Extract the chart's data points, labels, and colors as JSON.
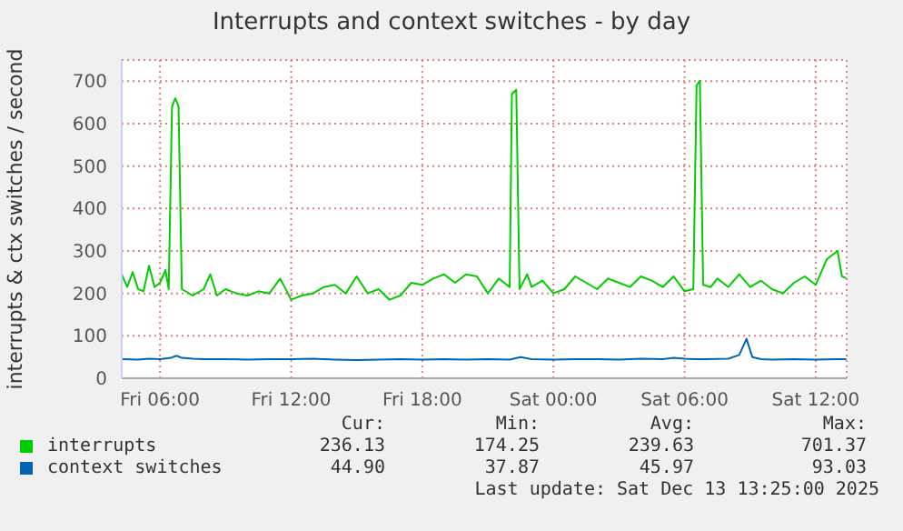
{
  "chart_data": {
    "type": "line",
    "title": "Interrupts and context switches - by day",
    "ylabel": "interrupts & ctx switches / second",
    "xlim": [
      "2025-12-12T04:15",
      "2025-12-13T13:25"
    ],
    "xticks": [
      {
        "value": "2025-12-12T06:00",
        "label": "Fri 06:00"
      },
      {
        "value": "2025-12-12T12:00",
        "label": "Fri 12:00"
      },
      {
        "value": "2025-12-12T18:00",
        "label": "Fri 18:00"
      },
      {
        "value": "2025-12-13T00:00",
        "label": "Sat 00:00"
      },
      {
        "value": "2025-12-13T06:00",
        "label": "Sat 06:00"
      },
      {
        "value": "2025-12-13T12:00",
        "label": "Sat 12:00"
      }
    ],
    "ylim": [
      0,
      750
    ],
    "yticks": [
      0,
      100,
      200,
      300,
      400,
      500,
      600,
      700
    ],
    "grid": true,
    "legend": "bottom",
    "marker": "none",
    "series": [
      {
        "name": "interrupts",
        "color": "#00cc00",
        "x": [
          "2025-12-12T04:15",
          "2025-12-12T04:30",
          "2025-12-12T04:45",
          "2025-12-12T05:00",
          "2025-12-12T05:15",
          "2025-12-12T05:30",
          "2025-12-12T05:45",
          "2025-12-12T06:00",
          "2025-12-12T06:15",
          "2025-12-12T06:24",
          "2025-12-12T06:33",
          "2025-12-12T06:42",
          "2025-12-12T06:51",
          "2025-12-12T07:00",
          "2025-12-12T07:30",
          "2025-12-12T08:00",
          "2025-12-12T08:18",
          "2025-12-12T08:36",
          "2025-12-12T09:00",
          "2025-12-12T09:30",
          "2025-12-12T10:00",
          "2025-12-12T10:30",
          "2025-12-12T11:00",
          "2025-12-12T11:30",
          "2025-12-12T12:00",
          "2025-12-12T12:30",
          "2025-12-12T13:00",
          "2025-12-12T13:30",
          "2025-12-12T14:00",
          "2025-12-12T14:30",
          "2025-12-12T15:00",
          "2025-12-12T15:30",
          "2025-12-12T16:00",
          "2025-12-12T16:30",
          "2025-12-12T17:00",
          "2025-12-12T17:30",
          "2025-12-12T18:00",
          "2025-12-12T18:30",
          "2025-12-12T19:00",
          "2025-12-12T19:30",
          "2025-12-12T20:00",
          "2025-12-12T20:30",
          "2025-12-12T21:00",
          "2025-12-12T21:30",
          "2025-12-12T22:00",
          "2025-12-12T22:06",
          "2025-12-12T22:18",
          "2025-12-12T22:27",
          "2025-12-12T22:48",
          "2025-12-12T23:00",
          "2025-12-12T23:30",
          "2025-12-13T00:00",
          "2025-12-13T00:30",
          "2025-12-13T01:00",
          "2025-12-13T01:30",
          "2025-12-13T02:00",
          "2025-12-13T02:30",
          "2025-12-13T03:00",
          "2025-12-13T03:30",
          "2025-12-13T04:00",
          "2025-12-13T04:30",
          "2025-12-13T05:00",
          "2025-12-13T05:30",
          "2025-12-13T06:00",
          "2025-12-13T06:24",
          "2025-12-13T06:33",
          "2025-12-13T06:42",
          "2025-12-13T06:51",
          "2025-12-13T07:12",
          "2025-12-13T07:30",
          "2025-12-13T08:00",
          "2025-12-13T08:30",
          "2025-12-13T09:00",
          "2025-12-13T09:30",
          "2025-12-13T10:00",
          "2025-12-13T10:30",
          "2025-12-13T11:00",
          "2025-12-13T11:30",
          "2025-12-13T12:00",
          "2025-12-13T12:30",
          "2025-12-13T13:00",
          "2025-12-13T13:12",
          "2025-12-13T13:24"
        ],
        "values": [
          245,
          215,
          250,
          210,
          205,
          265,
          215,
          225,
          255,
          210,
          640,
          660,
          640,
          210,
          195,
          210,
          245,
          195,
          210,
          200,
          195,
          205,
          200,
          235,
          185,
          195,
          200,
          215,
          220,
          200,
          240,
          200,
          210,
          185,
          195,
          225,
          220,
          235,
          245,
          225,
          245,
          240,
          200,
          235,
          215,
          670,
          680,
          210,
          245,
          215,
          230,
          200,
          210,
          240,
          225,
          210,
          235,
          225,
          215,
          240,
          230,
          215,
          240,
          205,
          210,
          690,
          701,
          220,
          215,
          235,
          215,
          245,
          215,
          230,
          210,
          200,
          225,
          240,
          220,
          280,
          300,
          240,
          236
        ]
      },
      {
        "name": "context switches",
        "color": "#0066b3",
        "x": [
          "2025-12-12T04:15",
          "2025-12-12T05:00",
          "2025-12-12T05:30",
          "2025-12-12T06:00",
          "2025-12-12T06:30",
          "2025-12-12T06:45",
          "2025-12-12T07:00",
          "2025-12-12T07:30",
          "2025-12-12T08:00",
          "2025-12-12T09:00",
          "2025-12-12T10:00",
          "2025-12-12T11:00",
          "2025-12-12T12:00",
          "2025-12-12T13:00",
          "2025-12-12T14:00",
          "2025-12-12T15:00",
          "2025-12-12T16:00",
          "2025-12-12T17:00",
          "2025-12-12T18:00",
          "2025-12-12T19:00",
          "2025-12-12T20:00",
          "2025-12-12T21:00",
          "2025-12-12T22:00",
          "2025-12-12T22:30",
          "2025-12-12T23:00",
          "2025-12-13T00:00",
          "2025-12-13T01:00",
          "2025-12-13T02:00",
          "2025-12-13T03:00",
          "2025-12-13T04:00",
          "2025-12-13T05:00",
          "2025-12-13T05:30",
          "2025-12-13T06:00",
          "2025-12-13T06:30",
          "2025-12-13T07:00",
          "2025-12-13T08:00",
          "2025-12-13T08:30",
          "2025-12-13T08:50",
          "2025-12-13T09:06",
          "2025-12-13T09:30",
          "2025-12-13T10:00",
          "2025-12-13T11:00",
          "2025-12-13T12:00",
          "2025-12-13T13:00",
          "2025-12-13T13:24"
        ],
        "values": [
          45,
          44,
          46,
          45,
          48,
          53,
          48,
          46,
          45,
          45,
          44,
          45,
          45,
          46,
          44,
          43,
          44,
          45,
          44,
          45,
          44,
          45,
          44,
          50,
          45,
          44,
          45,
          45,
          44,
          46,
          45,
          48,
          46,
          45,
          45,
          46,
          55,
          93,
          50,
          45,
          44,
          45,
          44,
          45,
          45
        ]
      }
    ],
    "annotations": [
      "Cur:",
      "Min:",
      "Avg:",
      "Max:",
      "236.13",
      "174.25",
      "239.63",
      "701.37",
      "44.90",
      "37.87",
      "45.97",
      "93.03",
      "Last update: Sat Dec 13 13:25:00 2025"
    ]
  }
}
